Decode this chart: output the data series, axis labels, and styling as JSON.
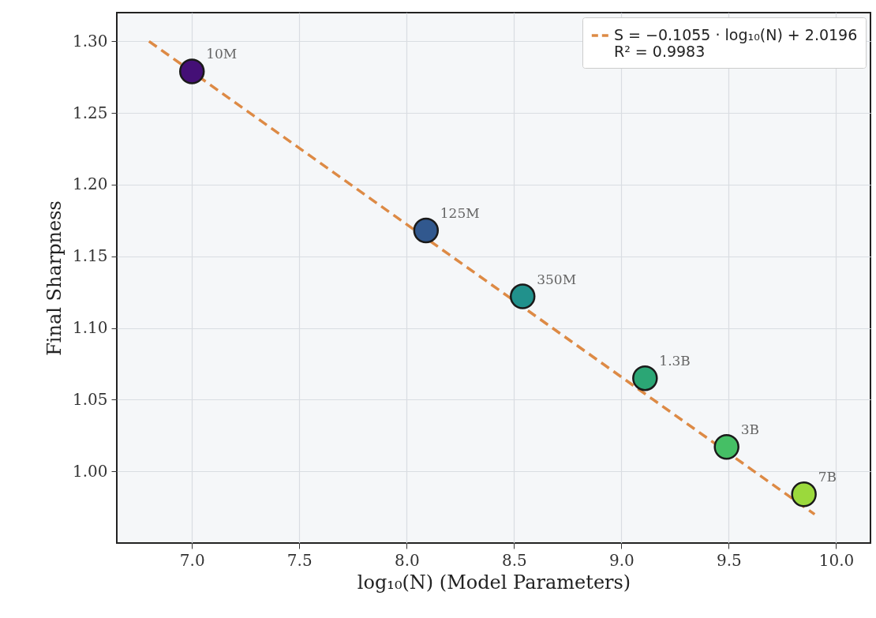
{
  "chart_data": {
    "type": "scatter",
    "xlabel": "log₁₀(N) (Model Parameters)",
    "ylabel": "Final Sharpness",
    "xlim": [
      6.65,
      10.16
    ],
    "ylim": [
      0.95,
      1.32
    ],
    "xticks": [
      {
        "value": 7,
        "label": "7.0"
      },
      {
        "value": 7.5,
        "label": "7.5"
      },
      {
        "value": 8,
        "label": "8.0"
      },
      {
        "value": 8.5,
        "label": "8.5"
      },
      {
        "value": 9,
        "label": "9.0"
      },
      {
        "value": 9.5,
        "label": "9.5"
      },
      {
        "value": 10,
        "label": "10.0"
      }
    ],
    "yticks": [
      {
        "value": 1,
        "label": "1.00"
      },
      {
        "value": 1.05,
        "label": "1.05"
      },
      {
        "value": 1.1,
        "label": "1.10"
      },
      {
        "value": 1.15,
        "label": "1.15"
      },
      {
        "value": 1.2,
        "label": "1.20"
      },
      {
        "value": 1.25,
        "label": "1.25"
      },
      {
        "value": 1.3,
        "label": "1.30"
      }
    ],
    "grid": true,
    "legend": "top right",
    "series": [
      {
        "type": "line",
        "name": "S = −0.1055 · log₁₀(N) + 2.0196\nR² = 0.9983",
        "color": "#dd8a45",
        "line_style": "dashed",
        "marker": "none",
        "x": [
          6.8,
          9.9
        ],
        "values": [
          1.3,
          0.97
        ]
      },
      {
        "marker": "circle",
        "x": [
          7.0,
          8.09,
          8.54,
          9.11,
          9.49,
          9.85
        ],
        "values": [
          1.279,
          1.168,
          1.122,
          1.065,
          1.017,
          0.984
        ],
        "colors": [
          "#440f76",
          "#31588e",
          "#21918c",
          "#2ba675",
          "#45bf65",
          "#9bd93c"
        ]
      }
    ],
    "annotations": [
      {
        "text": "10M",
        "x": 7.0,
        "y": 1.279
      },
      {
        "text": "125M",
        "x": 8.09,
        "y": 1.168
      },
      {
        "text": "350M",
        "x": 8.54,
        "y": 1.122
      },
      {
        "text": "1.3B",
        "x": 9.11,
        "y": 1.065
      },
      {
        "text": "3B",
        "x": 9.49,
        "y": 1.017
      },
      {
        "text": "7B",
        "x": 9.85,
        "y": 0.984
      }
    ]
  }
}
